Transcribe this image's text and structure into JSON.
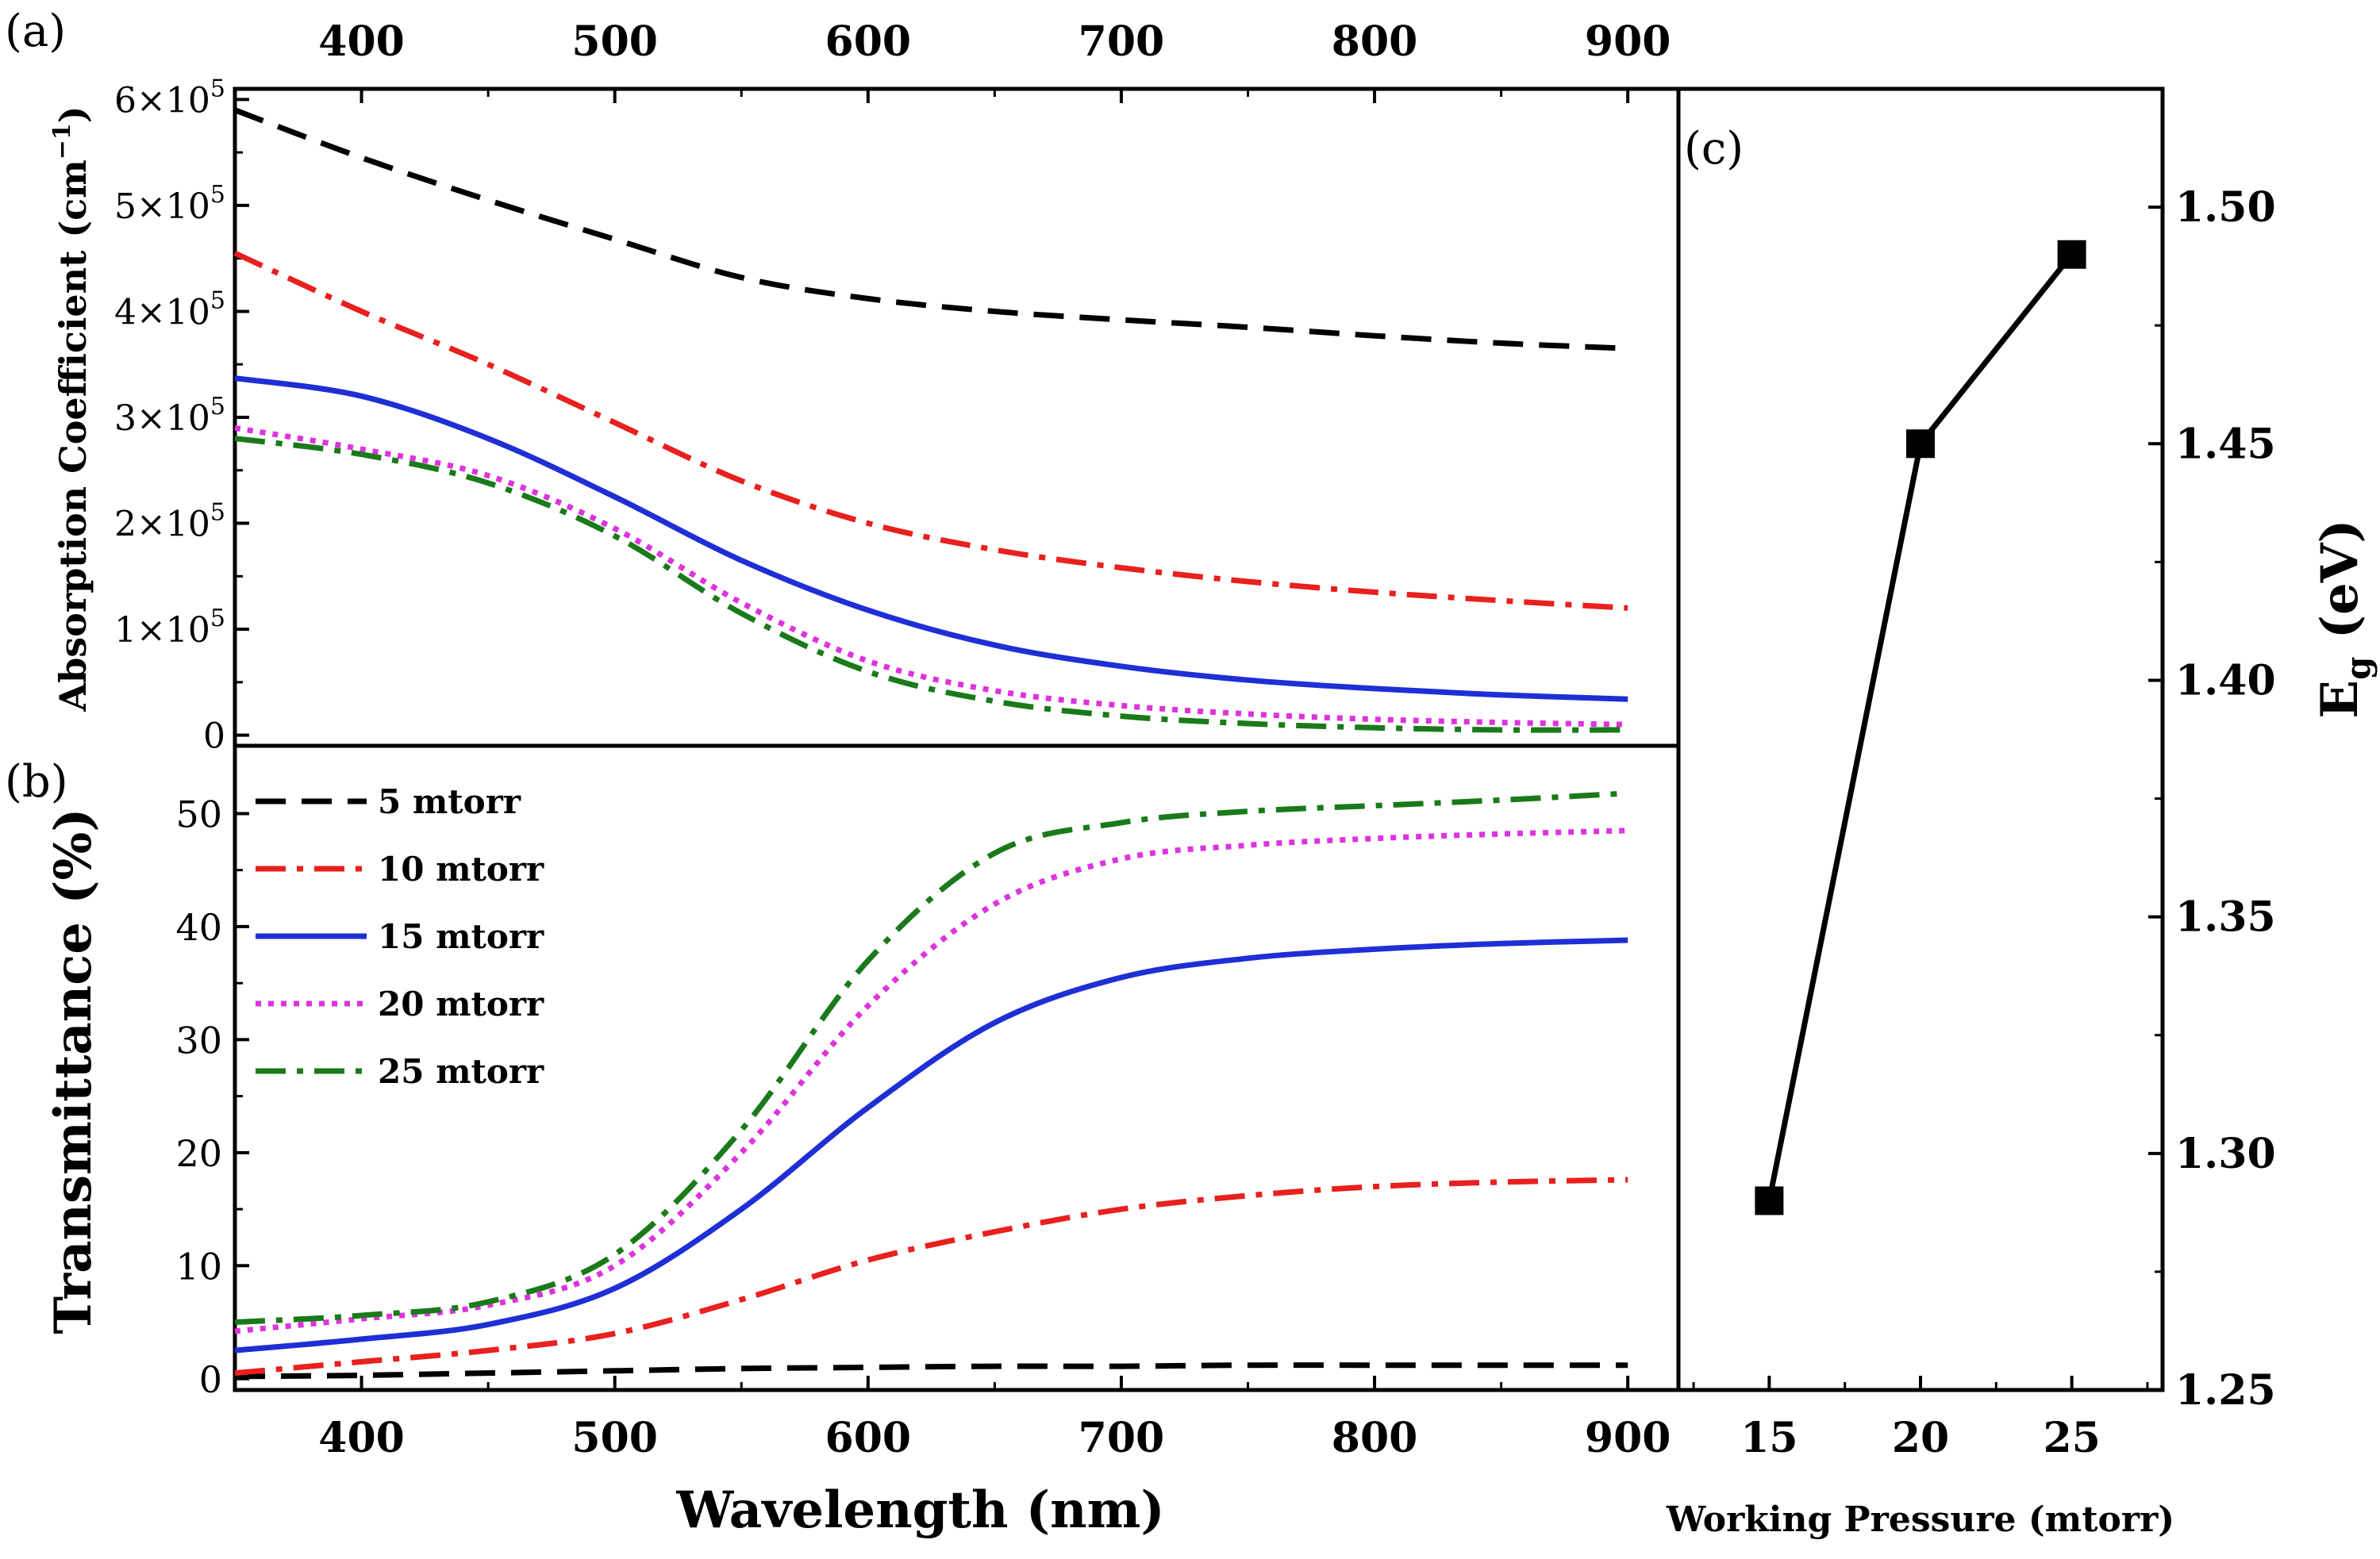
{
  "chart_data": [
    {
      "panel": "(a)",
      "type": "line",
      "xlabel_top_ticks": [
        "400",
        "500",
        "600",
        "700",
        "800",
        "900"
      ],
      "ylabel": "Absorption Coefficient (cm",
      "ylabel_sup": "−1",
      "ylabel_close": ")",
      "xlim": [
        350,
        920
      ],
      "ylim": [
        -10000,
        610000
      ],
      "ytick_values": [
        0,
        100000,
        200000,
        300000,
        400000,
        500000,
        600000
      ],
      "ytick_labels": [
        {
          "mant": "0",
          "exp": ""
        },
        {
          "mant": "1×10",
          "exp": "5"
        },
        {
          "mant": "2×10",
          "exp": "5"
        },
        {
          "mant": "3×10",
          "exp": "5"
        },
        {
          "mant": "4×10",
          "exp": "5"
        },
        {
          "mant": "5×10",
          "exp": "5"
        },
        {
          "mant": "6×10",
          "exp": "5"
        }
      ],
      "x": [
        350,
        400,
        450,
        500,
        550,
        600,
        650,
        700,
        750,
        800,
        850,
        900
      ],
      "series": [
        {
          "name": "5 mtorr",
          "color": "#000000",
          "dash": "dash",
          "values": [
            590000,
            545000,
            505000,
            468000,
            432000,
            412000,
            400000,
            392000,
            385000,
            377000,
            370000,
            365000
          ]
        },
        {
          "name": "10 mtorr",
          "color": "#e8201e",
          "dash": "dashdot",
          "values": [
            455000,
            400000,
            350000,
            295000,
            240000,
            200000,
            175000,
            158000,
            145000,
            135000,
            127000,
            120000
          ]
        },
        {
          "name": "15 mtorr",
          "color": "#1f2fd6",
          "dash": "solid",
          "values": [
            337000,
            320000,
            280000,
            225000,
            165000,
            118000,
            85000,
            65000,
            52000,
            44000,
            38000,
            34000
          ]
        },
        {
          "name": "20 mtorr",
          "color": "#dd33dd",
          "dash": "dot",
          "values": [
            290000,
            270000,
            245000,
            195000,
            125000,
            70000,
            42000,
            28000,
            20000,
            15000,
            12000,
            10000
          ]
        },
        {
          "name": "25 mtorr",
          "color": "#1a7a1a",
          "dash": "dashdot",
          "values": [
            280000,
            265000,
            238000,
            188000,
            115000,
            60000,
            32000,
            18000,
            11000,
            7000,
            5000,
            5000
          ]
        }
      ]
    },
    {
      "panel": "(b)",
      "type": "line",
      "xlabel": "Wavelength (nm)",
      "ylabel": "Transmittance (%)",
      "xlim": [
        350,
        920
      ],
      "ylim": [
        -1,
        56
      ],
      "xtick_labels": [
        "400",
        "500",
        "600",
        "700",
        "800",
        "900"
      ],
      "ytick_labels": [
        "0",
        "10",
        "20",
        "30",
        "40",
        "50"
      ],
      "x": [
        350,
        400,
        450,
        500,
        550,
        600,
        650,
        700,
        750,
        800,
        850,
        900
      ],
      "series": [
        {
          "name": "5 mtorr",
          "color": "#000000",
          "dash": "dash",
          "values": [
            0.2,
            0.3,
            0.5,
            0.7,
            0.9,
            1.0,
            1.1,
            1.1,
            1.2,
            1.2,
            1.2,
            1.2
          ]
        },
        {
          "name": "10 mtorr",
          "color": "#e8201e",
          "dash": "dashdot",
          "values": [
            0.5,
            1.5,
            2.5,
            4.0,
            7.0,
            10.5,
            13.0,
            15.0,
            16.2,
            17.0,
            17.4,
            17.6
          ]
        },
        {
          "name": "15 mtorr",
          "color": "#1f2fd6",
          "dash": "solid",
          "values": [
            2.5,
            3.5,
            4.8,
            8.0,
            15.0,
            24.0,
            31.5,
            35.5,
            37.2,
            38.0,
            38.5,
            38.8
          ]
        },
        {
          "name": "20 mtorr",
          "color": "#dd33dd",
          "dash": "dot",
          "values": [
            4.2,
            5.3,
            6.5,
            10.0,
            20.0,
            33.0,
            42.0,
            46.0,
            47.2,
            47.8,
            48.2,
            48.5
          ]
        },
        {
          "name": "25 mtorr",
          "color": "#1a7a1a",
          "dash": "dashdot",
          "values": [
            5.0,
            5.6,
            6.8,
            11.0,
            22.0,
            37.0,
            46.5,
            49.2,
            50.2,
            50.7,
            51.2,
            51.8
          ]
        }
      ],
      "legend": [
        "5 mtorr",
        "10 mtorr",
        "15 mtorr",
        "20 mtorr",
        "25 mtorr"
      ]
    },
    {
      "panel": "(c)",
      "type": "line",
      "xlabel": "Working Pressure (mtorr)",
      "ylabel_main": "E",
      "ylabel_sub": "g",
      "ylabel_unit": " (eV)",
      "xlim": [
        12,
        28
      ],
      "ylim": [
        1.25,
        1.525
      ],
      "xtick_labels": [
        "15",
        "20",
        "25"
      ],
      "xtick_values": [
        15,
        20,
        25
      ],
      "ytick_labels": [
        "1.25",
        "1.30",
        "1.35",
        "1.40",
        "1.45",
        "1.50"
      ],
      "ytick_values": [
        1.25,
        1.3,
        1.35,
        1.4,
        1.45,
        1.5
      ],
      "x": [
        15,
        20,
        25
      ],
      "values": [
        1.29,
        1.45,
        1.49
      ],
      "marker": "square",
      "color": "#000000"
    }
  ]
}
